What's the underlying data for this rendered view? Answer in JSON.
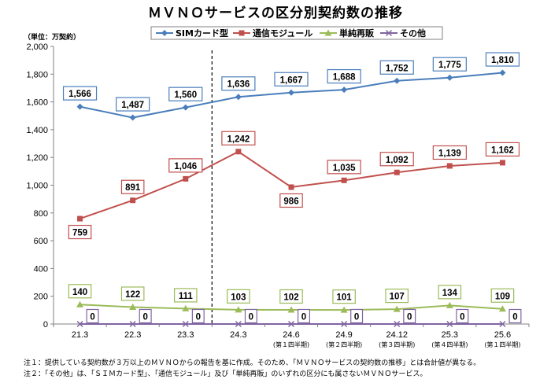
{
  "chart_data": {
    "type": "line",
    "title": "ＭＶＮＯサービスの区分別契約数の推移",
    "unit_label": "（単位：万契約）",
    "categories": [
      "21.3",
      "22.3",
      "23.3",
      "24.3",
      "24.6",
      "24.9",
      "24.12",
      "25.3",
      "25.6"
    ],
    "category_sublabels": [
      "",
      "",
      "",
      "",
      "(第１四半期)",
      "(第２四半期)",
      "(第３四半期)",
      "(第４四半期)",
      "(第１四半期)"
    ],
    "divider_between": [
      "23.3",
      "24.3"
    ],
    "ylim": [
      0,
      2000
    ],
    "yticks": [
      "0",
      "200",
      "400",
      "600",
      "800",
      "1,000",
      "1,200",
      "1,400",
      "1,600",
      "1,800",
      "2,000"
    ],
    "grid": false,
    "legend_position": "top",
    "series": [
      {
        "name": "SIMカード型",
        "color": "#4a7ebb",
        "marker": "diamond",
        "values": [
          1566,
          1487,
          1560,
          1636,
          1667,
          1688,
          1752,
          1775,
          1810
        ],
        "labels": [
          "1,566",
          "1,487",
          "1,560",
          "1,636",
          "1,667",
          "1,688",
          "1,752",
          "1,775",
          "1,810"
        ]
      },
      {
        "name": "通信モジュール",
        "color": "#c0504d",
        "marker": "square",
        "values": [
          759,
          891,
          1046,
          1242,
          986,
          1035,
          1092,
          1139,
          1162
        ],
        "labels": [
          "759",
          "891",
          "1,046",
          "1,242",
          "986",
          "1,035",
          "1,092",
          "1,139",
          "1,162"
        ]
      },
      {
        "name": "単純再販",
        "color": "#9bbb59",
        "marker": "triangle",
        "values": [
          140,
          122,
          111,
          103,
          102,
          101,
          107,
          134,
          109
        ],
        "labels": [
          "140",
          "122",
          "111",
          "103",
          "102",
          "101",
          "107",
          "134",
          "109"
        ]
      },
      {
        "name": "その他",
        "color": "#8064a2",
        "marker": "x",
        "values": [
          0,
          0,
          0,
          0,
          0,
          0,
          0,
          0,
          0
        ],
        "labels": [
          "0",
          "0",
          "0",
          "0",
          "0",
          "0",
          "0",
          "0",
          "0"
        ]
      }
    ]
  },
  "notes": [
    "注１：提供している契約数が３万以上のＭＶＮＯからの報告を基に作成。そのため、「ＭＶＮＯサービスの契約数の推移」とは合計値が異なる。",
    "注２：「その他」は、「ＳＩＭカード型」、「通信モジュール」及び「単純再販」のいずれの区分にも属さないＭＶＮＯサービス。"
  ]
}
